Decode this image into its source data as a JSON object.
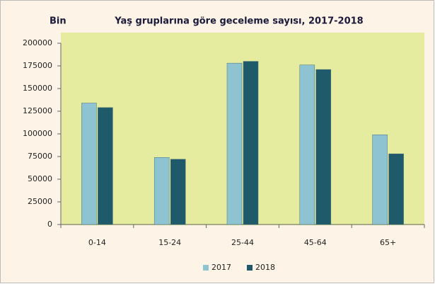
{
  "chart_data": {
    "type": "bar",
    "title": "Yaş gruplarına göre geceleme sayısı,  2017-2018",
    "y_axis_label": "Bin",
    "categories": [
      "0-14",
      "15-24",
      "25-44",
      "45-64",
      "65+"
    ],
    "series": [
      {
        "name": "2017",
        "color": "#8ec4d2",
        "values": [
          134000,
          74000,
          178000,
          176000,
          99000
        ]
      },
      {
        "name": "2018",
        "color": "#1f5a6b",
        "values": [
          129000,
          72000,
          180000,
          171000,
          78000
        ]
      }
    ],
    "ylim": [
      0,
      200000
    ],
    "yticks": [
      0,
      25000,
      50000,
      75000,
      100000,
      125000,
      150000,
      175000,
      200000
    ],
    "grid": false,
    "legend": "bottom"
  }
}
